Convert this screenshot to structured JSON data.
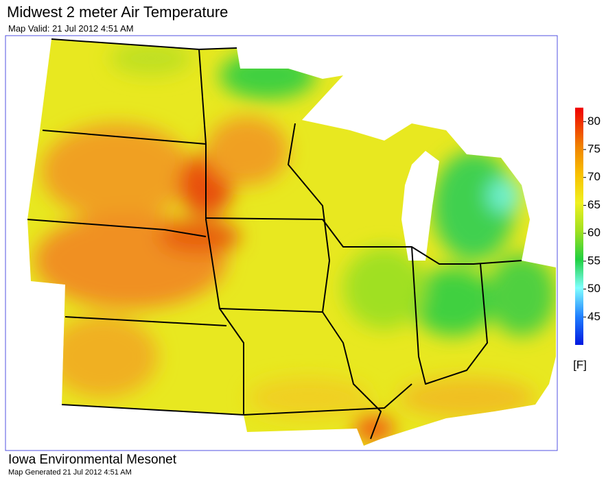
{
  "header": {
    "title": "Midwest 2 meter Air Temperature",
    "subtitle": "Map Valid: 21 Jul 2012 4:51 AM"
  },
  "colorbar": {
    "lim": [
      40,
      82.5
    ],
    "ticks": [
      45,
      50,
      55,
      60,
      65,
      70,
      75,
      80
    ],
    "unit": "[F]"
  },
  "footer": {
    "source": "Iowa Environmental Mesonet",
    "generated": "Map Generated 21 Jul 2012 4:51 AM"
  }
}
